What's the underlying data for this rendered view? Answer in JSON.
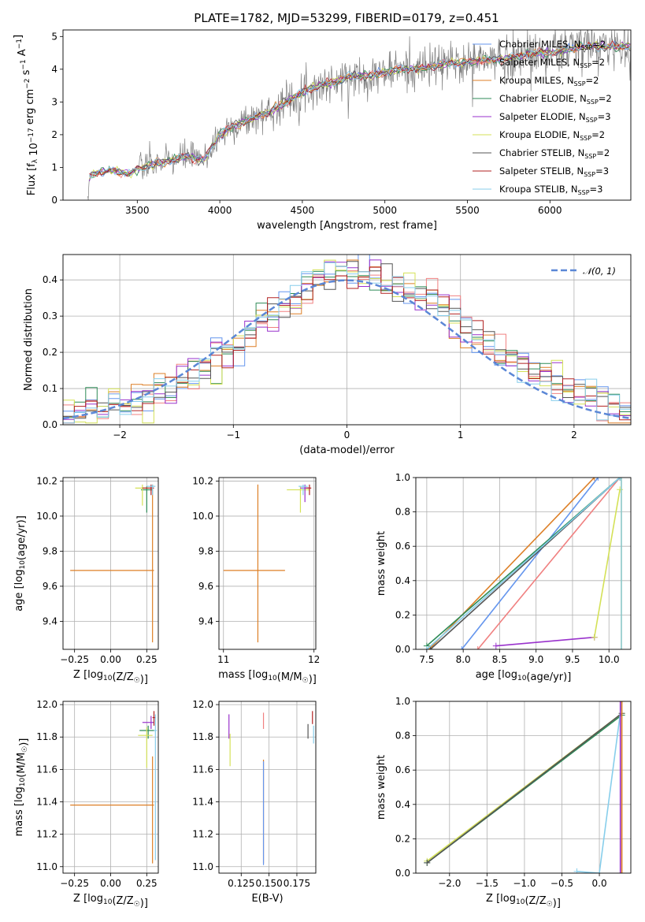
{
  "figure_title": "PLATE=1782, MJD=53299, FIBERID=0179, z=0.451",
  "chart_data": [
    {
      "id": "spectrum",
      "type": "line",
      "xlabel": "wavelength [Angstrom, rest frame]",
      "ylabel": "Flux [f_λ 10^-17 erg cm^-2 s^-1 A^-1]",
      "xlim": [
        3050,
        6490
      ],
      "ylim": [
        0,
        5.2
      ],
      "xticks": [
        3500,
        4000,
        4500,
        5000,
        5500,
        6000
      ],
      "xtick_labels": [
        "3500",
        "4000",
        "4500",
        "5000",
        "5500",
        "6000"
      ],
      "yticks": [
        0,
        1,
        2,
        3,
        4,
        5
      ],
      "ytick_labels": [
        "0",
        "1",
        "2",
        "3",
        "4",
        "5"
      ],
      "grid": false,
      "legend_position": "upper-right",
      "data_trend": {
        "x": [
          3200,
          3210,
          3250,
          3350,
          3450,
          3500,
          3600,
          3700,
          3800,
          3900,
          4000,
          4100,
          4200,
          4300,
          4400,
          4500,
          4600,
          4700,
          4800,
          4900,
          5000,
          5100,
          5200,
          5300,
          5400,
          5500,
          5600,
          5700,
          5800,
          5900,
          6000,
          6100,
          6200,
          6300
        ],
        "y": [
          0,
          0.7,
          0.85,
          0.9,
          0.8,
          0.95,
          1.1,
          1.2,
          1.35,
          1.2,
          2.0,
          2.3,
          2.5,
          2.7,
          3.0,
          3.3,
          3.5,
          3.6,
          3.8,
          3.8,
          3.9,
          4.0,
          4.0,
          4.1,
          4.2,
          4.2,
          4.3,
          4.3,
          4.4,
          4.5,
          4.5,
          4.6,
          4.7,
          4.7
        ]
      },
      "series": [
        {
          "name": "Chabrier MILES, N_SSP=2",
          "color": "#6495ED"
        },
        {
          "name": "Salpeter MILES, N_SSP=2",
          "color": "#F08080"
        },
        {
          "name": "Kroupa MILES, N_SSP=2",
          "color": "#DD7F26"
        },
        {
          "name": "Chabrier ELODIE, N_SSP=2",
          "color": "#2E8B57"
        },
        {
          "name": "Salpeter ELODIE, N_SSP=3",
          "color": "#9932CC"
        },
        {
          "name": "Kroupa ELODIE, N_SSP=2",
          "color": "#D4E157"
        },
        {
          "name": "Chabrier STELIB, N_SSP=2",
          "color": "#555555"
        },
        {
          "name": "Salpeter STELIB, N_SSP=3",
          "color": "#B22222"
        },
        {
          "name": "Kroupa STELIB, N_SSP=3",
          "color": "#87CEEB"
        }
      ]
    },
    {
      "id": "residuals",
      "type": "line",
      "xlabel": "(data-model)/error",
      "ylabel": "Normed distribution",
      "xlim": [
        -2.5,
        2.5
      ],
      "ylim": [
        0,
        0.47
      ],
      "xticks": [
        -2,
        -1,
        0,
        1,
        2
      ],
      "xtick_labels": [
        "−2",
        "−1",
        "0",
        "1",
        "2"
      ],
      "yticks": [
        0,
        0.1,
        0.2,
        0.3,
        0.4
      ],
      "ytick_labels": [
        "0.0",
        "0.1",
        "0.2",
        "0.3",
        "0.4"
      ],
      "grid": true,
      "legend": "N(0,1)",
      "legend_position": "upper-right",
      "reference_curve": {
        "name": "N(0,1)",
        "mean": 0,
        "sigma": 1,
        "color": "#5B87D6",
        "style": "dashed"
      },
      "hist_bin_width": 0.1,
      "hist_trend": {
        "x": [
          -2.5,
          -2.0,
          -1.5,
          -1.2,
          -1.0,
          -0.8,
          -0.5,
          -0.3,
          0.0,
          0.3,
          0.5,
          0.8,
          1.0,
          1.2,
          1.5,
          2.0,
          2.5
        ],
        "y": [
          0.02,
          0.06,
          0.1,
          0.18,
          0.19,
          0.28,
          0.34,
          0.4,
          0.43,
          0.4,
          0.37,
          0.33,
          0.28,
          0.22,
          0.18,
          0.1,
          0.03
        ]
      }
    },
    {
      "id": "age-vs-metallicity",
      "type": "scatter",
      "xlabel": "Z [log10(Z/Z☉)]",
      "ylabel": "age [log10(age/yr)]",
      "xlim": [
        -0.33,
        0.33
      ],
      "ylim": [
        9.24,
        10.22
      ],
      "xticks": [
        -0.25,
        0,
        0.25
      ],
      "xtick_labels": [
        "−0.25",
        "0.00",
        "0.25"
      ],
      "yticks": [
        9.4,
        9.6,
        9.8,
        10.0,
        10.2
      ],
      "ytick_labels": [
        "9.4",
        "9.6",
        "9.8",
        "10.0",
        "10.2"
      ],
      "grid": true,
      "points": [
        {
          "x": 0.29,
          "y": 9.69,
          "xerr": [
            0.57,
            0.01
          ],
          "yerr": [
            0.41,
            0.49
          ],
          "color": "#DD7F26"
        },
        {
          "x": 0.25,
          "y": 10.15,
          "xerr": [
            0.04,
            0.04
          ],
          "yerr": [
            0.13,
            0.02
          ],
          "color": "#2E8B57"
        },
        {
          "x": 0.22,
          "y": 10.16,
          "xerr": [
            0.05,
            0.05
          ],
          "yerr": [
            0.1,
            0.02
          ],
          "color": "#D4E157"
        },
        {
          "x": 0.28,
          "y": 10.16,
          "xerr": [
            0.06,
            0.02
          ],
          "yerr": [
            0.04,
            0.02
          ],
          "color": "#B22222"
        },
        {
          "x": 0.29,
          "y": 10.17,
          "xerr": [
            0.04,
            0.02
          ],
          "yerr": [
            0.05,
            0.01
          ],
          "color": "#87CEEB"
        }
      ]
    },
    {
      "id": "age-vs-mass",
      "type": "scatter",
      "xlabel": "mass [log10(M/M☉)]",
      "ylabel": "",
      "xlim": [
        10.95,
        12.02
      ],
      "ylim": [
        9.24,
        10.22
      ],
      "xticks": [
        11,
        12
      ],
      "xtick_labels": [
        "11",
        "12"
      ],
      "yticks": [
        9.4,
        9.6,
        9.8,
        10.0,
        10.2
      ],
      "ytick_labels": [
        "9.4",
        "9.6",
        "9.8",
        "10.0",
        "10.2"
      ],
      "grid": true,
      "points": [
        {
          "x": 11.38,
          "y": 9.69,
          "xerr": [
            0.38,
            0.3
          ],
          "yerr": [
            0.41,
            0.49
          ],
          "color": "#DD7F26"
        },
        {
          "x": 11.85,
          "y": 10.15,
          "xerr": [
            0.15,
            0.1
          ],
          "yerr": [
            0.13,
            0.02
          ],
          "color": "#D4E157"
        },
        {
          "x": 11.9,
          "y": 10.16,
          "xerr": [
            0.05,
            0.05
          ],
          "yerr": [
            0.08,
            0.02
          ],
          "color": "#9932CC"
        },
        {
          "x": 11.95,
          "y": 10.16,
          "xerr": [
            0.04,
            0.02
          ],
          "yerr": [
            0.04,
            0.02
          ],
          "color": "#B22222"
        },
        {
          "x": 11.88,
          "y": 10.17,
          "xerr": [
            0.05,
            0.05
          ],
          "yerr": [
            0.05,
            0.01
          ],
          "color": "#87CEEB"
        }
      ]
    },
    {
      "id": "mass-weight-vs-age",
      "type": "line",
      "xlabel": "age [log10(age/yr)]",
      "ylabel": "mass weight",
      "xlim": [
        7.35,
        10.3
      ],
      "ylim": [
        0,
        1
      ],
      "xticks": [
        7.5,
        8.0,
        8.5,
        9.0,
        9.5,
        10.0
      ],
      "xtick_labels": [
        "7.5",
        "8.0",
        "8.5",
        "9.0",
        "9.5",
        "10.0"
      ],
      "yticks": [
        0,
        0.2,
        0.4,
        0.6,
        0.8,
        1.0
      ],
      "ytick_labels": [
        "0.0",
        "0.2",
        "0.4",
        "0.6",
        "0.8",
        "1.0"
      ],
      "grid": true,
      "series": [
        {
          "color": "#DD7F26",
          "x": [
            7.53,
            9.8
          ],
          "y": [
            0,
            1
          ]
        },
        {
          "color": "#6495ED",
          "x": [
            7.98,
            9.85
          ],
          "y": [
            0,
            1
          ]
        },
        {
          "color": "#F08080",
          "x": [
            8.2,
            10.15
          ],
          "y": [
            0,
            1
          ]
        },
        {
          "color": "#2E8B57",
          "x": [
            7.5,
            10.15
          ],
          "y": [
            0.02,
            1
          ]
        },
        {
          "color": "#555555",
          "x": [
            7.55,
            10.15
          ],
          "y": [
            0,
            1
          ]
        },
        {
          "color": "#87CEEB",
          "x": [
            7.5,
            10.15
          ],
          "y": [
            0,
            1
          ]
        },
        {
          "color": "#9932CC",
          "x": [
            8.45,
            9.8
          ],
          "y": [
            0.02,
            0.07
          ]
        },
        {
          "color": "#D4E157",
          "x": [
            9.8,
            10.15
          ],
          "y": [
            0.07,
            0.93
          ]
        },
        {
          "color": "#8AC8C8",
          "x": [
            10.17,
            10.17
          ],
          "y": [
            0,
            1
          ]
        }
      ]
    },
    {
      "id": "mass-vs-metallicity",
      "type": "scatter",
      "xlabel": "Z [log10(Z/Z☉)]",
      "ylabel": "mass [log10(M/M☉)]",
      "xlim": [
        -0.33,
        0.33
      ],
      "ylim": [
        10.96,
        12.02
      ],
      "xticks": [
        -0.25,
        0,
        0.25
      ],
      "xtick_labels": [
        "−0.25",
        "0.00",
        "0.25"
      ],
      "yticks": [
        11.0,
        11.2,
        11.4,
        11.6,
        11.8,
        12.0
      ],
      "ytick_labels": [
        "11.0",
        "11.2",
        "11.4",
        "11.6",
        "11.8",
        "12.0"
      ],
      "grid": true,
      "points": [
        {
          "x": 0.29,
          "y": 11.38,
          "xerr": [
            0.57,
            0.01
          ],
          "yerr": [
            0.36,
            0.3
          ],
          "color": "#DD7F26"
        },
        {
          "x": 0.28,
          "y": 11.89,
          "xerr": [
            0.06,
            0.02
          ],
          "yerr": [
            0.04,
            0.04
          ],
          "color": "#9932CC"
        },
        {
          "x": 0.26,
          "y": 11.84,
          "xerr": [
            0.06,
            0.04
          ],
          "yerr": [
            0.05,
            0.03
          ],
          "color": "#2E8B57"
        },
        {
          "x": 0.25,
          "y": 11.81,
          "xerr": [
            0.06,
            0.04
          ],
          "yerr": [
            0.2,
            0.05
          ],
          "color": "#D4E157"
        },
        {
          "x": 0.3,
          "y": 11.92,
          "xerr": [
            0.01,
            0.01
          ],
          "yerr": [
            0.05,
            0.04
          ],
          "color": "#B22222"
        },
        {
          "x": 0.31,
          "y": 11.84,
          "xerr": [
            0.01,
            0.01
          ],
          "yerr": [
            0.8,
            0.1
          ],
          "color": "#87CEEB"
        }
      ]
    },
    {
      "id": "mass-vs-extinction",
      "type": "scatter",
      "xlabel": "E(B-V)",
      "ylabel": "",
      "xlim": [
        0.105,
        0.192
      ],
      "ylim": [
        10.96,
        12.02
      ],
      "xticks": [
        0.125,
        0.15,
        0.175
      ],
      "xtick_labels": [
        "0.125",
        "0.150",
        "0.175"
      ],
      "yticks": [
        11.0,
        11.2,
        11.4,
        11.6,
        11.8,
        12.0
      ],
      "ytick_labels": [
        "11.0",
        "11.2",
        "11.4",
        "11.6",
        "11.8",
        "12.0"
      ],
      "grid": true,
      "points": [
        {
          "x": 0.145,
          "y": 11.38,
          "yerr": [
            0.36,
            0.28
          ],
          "color": "#DD7F26"
        },
        {
          "x": 0.145,
          "y": 11.03,
          "yerr": [
            0.02,
            0.62
          ],
          "color": "#6495ED"
        },
        {
          "x": 0.145,
          "y": 11.9,
          "yerr": [
            0.05,
            0.05
          ],
          "color": "#F08080"
        },
        {
          "x": 0.114,
          "y": 11.87,
          "yerr": [
            0.08,
            0.07
          ],
          "color": "#9932CC"
        },
        {
          "x": 0.115,
          "y": 11.72,
          "yerr": [
            0.1,
            0.1
          ],
          "color": "#D4E157"
        },
        {
          "x": 0.185,
          "y": 11.84,
          "yerr": [
            0.05,
            0.04
          ],
          "color": "#555555"
        },
        {
          "x": 0.189,
          "y": 11.92,
          "yerr": [
            0.04,
            0.04
          ],
          "color": "#B22222"
        },
        {
          "x": 0.19,
          "y": 11.82,
          "yerr": [
            0.06,
            0.05
          ],
          "color": "#87CEEB"
        }
      ]
    },
    {
      "id": "mass-weight-vs-metallicity",
      "type": "line",
      "xlabel": "Z [log10(Z/Z☉)]",
      "ylabel": "mass weight",
      "xlim": [
        -2.45,
        0.42
      ],
      "ylim": [
        0,
        1
      ],
      "xticks": [
        -2.0,
        -1.5,
        -1.0,
        -0.5,
        0.0
      ],
      "xtick_labels": [
        "−2.0",
        "−1.5",
        "−1.0",
        "−0.5",
        "0.0"
      ],
      "yticks": [
        0,
        0.2,
        0.4,
        0.6,
        0.8,
        1.0
      ],
      "ytick_labels": [
        "0.0",
        "0.2",
        "0.4",
        "0.6",
        "0.8",
        "1.0"
      ],
      "grid": true,
      "series": [
        {
          "color": "#D4E157",
          "x": [
            -2.3,
            0.3
          ],
          "y": [
            0.07,
            0.93
          ]
        },
        {
          "color": "#2E8B57",
          "x": [
            -2.3,
            0.3
          ],
          "y": [
            0.06,
            0.92
          ]
        },
        {
          "color": "#555555",
          "x": [
            -2.3,
            0.3
          ],
          "y": [
            0.06,
            0.93
          ]
        },
        {
          "color": "#87CEEB",
          "x": [
            -0.3,
            0.0,
            0.3
          ],
          "y": [
            0.01,
            0.0,
            1.0
          ]
        },
        {
          "color": "#9932CC",
          "x": [
            0.28,
            0.28
          ],
          "y": [
            0.0,
            1.0
          ]
        },
        {
          "color": "#DD7F26",
          "x": [
            0.3,
            0.3
          ],
          "y": [
            0.0,
            1.0
          ]
        }
      ]
    }
  ]
}
